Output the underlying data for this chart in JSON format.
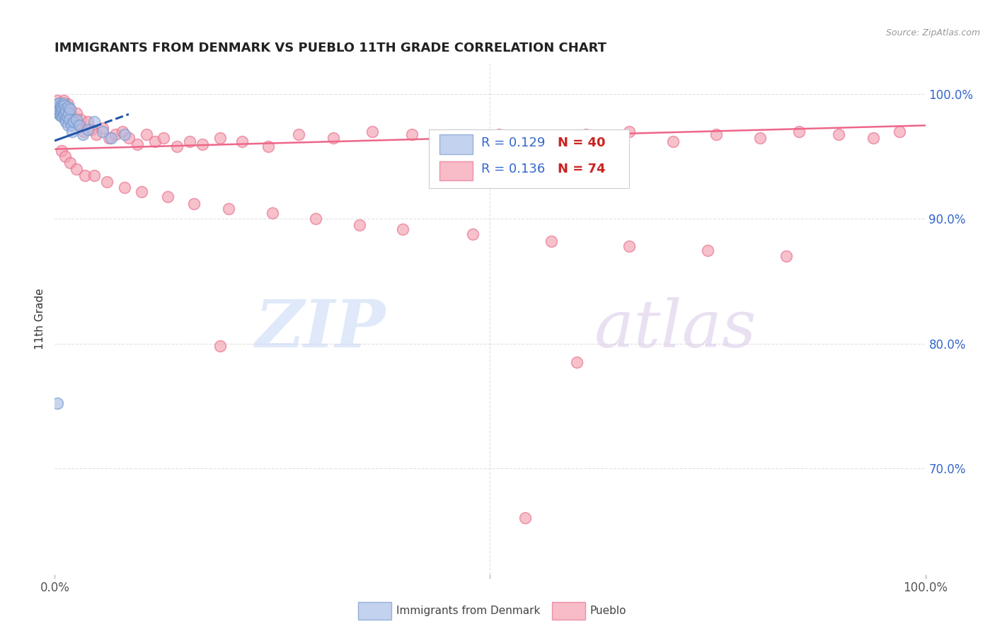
{
  "title": "IMMIGRANTS FROM DENMARK VS PUEBLO 11TH GRADE CORRELATION CHART",
  "source_text": "Source: ZipAtlas.com",
  "ylabel": "11th Grade",
  "xlim": [
    0.0,
    1.0
  ],
  "ylim": [
    0.615,
    1.025
  ],
  "ytick_positions": [
    0.7,
    0.8,
    0.9,
    1.0
  ],
  "ytick_labels": [
    "70.0%",
    "80.0%",
    "90.0%",
    "100.0%"
  ],
  "grid_color": "#e0e0e0",
  "background_color": "#ffffff",
  "blue_fill": "#aabfe8",
  "blue_edge": "#7799cc",
  "pink_fill": "#f4a0b0",
  "pink_edge": "#e87090",
  "blue_line_color": "#2255aa",
  "pink_line_color": "#ee6688",
  "legend_r_blue": "R = 0.129",
  "legend_n_blue": "N = 40",
  "legend_r_pink": "R = 0.136",
  "legend_n_pink": "N = 74",
  "legend_label_blue": "Immigrants from Denmark",
  "legend_label_pink": "Pueblo",
  "watermark_zip": "ZIP",
  "watermark_atlas": "atlas",
  "blue_scatter_x": [
    0.002,
    0.003,
    0.004,
    0.004,
    0.005,
    0.005,
    0.006,
    0.006,
    0.007,
    0.007,
    0.008,
    0.008,
    0.009,
    0.009,
    0.01,
    0.01,
    0.011,
    0.011,
    0.012,
    0.012,
    0.013,
    0.013,
    0.014,
    0.015,
    0.015,
    0.016,
    0.017,
    0.018,
    0.019,
    0.02,
    0.022,
    0.025,
    0.028,
    0.032,
    0.038,
    0.045,
    0.055,
    0.065,
    0.08,
    0.003
  ],
  "blue_scatter_y": [
    0.99,
    0.988,
    0.992,
    0.985,
    0.993,
    0.987,
    0.989,
    0.983,
    0.991,
    0.984,
    0.99,
    0.986,
    0.988,
    0.982,
    0.993,
    0.985,
    0.991,
    0.983,
    0.988,
    0.98,
    0.986,
    0.978,
    0.982,
    0.99,
    0.975,
    0.985,
    0.98,
    0.988,
    0.975,
    0.97,
    0.978,
    0.98,
    0.975,
    0.968,
    0.972,
    0.978,
    0.97,
    0.965,
    0.968,
    0.752
  ],
  "pink_scatter_x": [
    0.003,
    0.005,
    0.007,
    0.008,
    0.01,
    0.012,
    0.013,
    0.015,
    0.017,
    0.018,
    0.02,
    0.022,
    0.025,
    0.028,
    0.03,
    0.033,
    0.038,
    0.042,
    0.048,
    0.055,
    0.062,
    0.07,
    0.078,
    0.085,
    0.095,
    0.105,
    0.115,
    0.125,
    0.14,
    0.155,
    0.17,
    0.19,
    0.215,
    0.245,
    0.28,
    0.32,
    0.365,
    0.41,
    0.46,
    0.51,
    0.56,
    0.61,
    0.66,
    0.71,
    0.76,
    0.81,
    0.855,
    0.9,
    0.94,
    0.97,
    0.008,
    0.012,
    0.018,
    0.025,
    0.035,
    0.045,
    0.06,
    0.08,
    0.1,
    0.13,
    0.16,
    0.2,
    0.25,
    0.3,
    0.35,
    0.4,
    0.48,
    0.57,
    0.66,
    0.75,
    0.84,
    0.6,
    0.19,
    0.54
  ],
  "pink_scatter_y": [
    0.995,
    0.985,
    0.993,
    0.988,
    0.995,
    0.988,
    0.983,
    0.992,
    0.988,
    0.985,
    0.982,
    0.978,
    0.985,
    0.975,
    0.98,
    0.97,
    0.978,
    0.972,
    0.968,
    0.973,
    0.965,
    0.968,
    0.97,
    0.965,
    0.96,
    0.968,
    0.962,
    0.965,
    0.958,
    0.962,
    0.96,
    0.965,
    0.962,
    0.958,
    0.968,
    0.965,
    0.97,
    0.968,
    0.962,
    0.968,
    0.965,
    0.968,
    0.97,
    0.962,
    0.968,
    0.965,
    0.97,
    0.968,
    0.965,
    0.97,
    0.955,
    0.95,
    0.945,
    0.94,
    0.935,
    0.935,
    0.93,
    0.925,
    0.922,
    0.918,
    0.912,
    0.908,
    0.905,
    0.9,
    0.895,
    0.892,
    0.888,
    0.882,
    0.878,
    0.875,
    0.87,
    0.785,
    0.798,
    0.66
  ],
  "blue_line_x": [
    0.001,
    0.085
  ],
  "blue_line_y": [
    0.963,
    0.984
  ],
  "pink_line_x": [
    0.001,
    1.0
  ],
  "pink_line_y": [
    0.956,
    0.975
  ]
}
